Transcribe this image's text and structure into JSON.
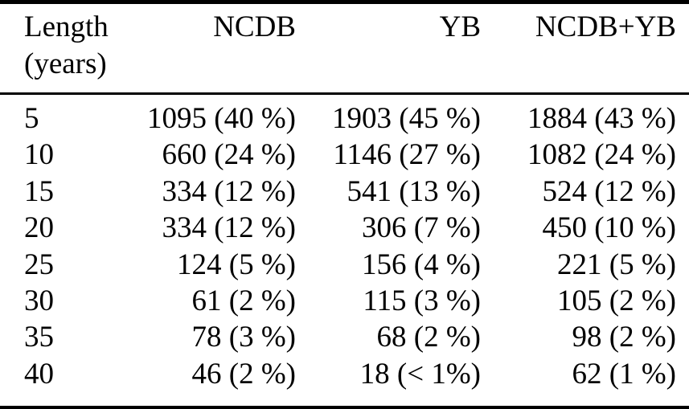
{
  "table": {
    "headers": {
      "length_line1": "Length",
      "length_line2": "(years)",
      "ncdb": "NCDB",
      "yb": "YB",
      "ncdb_yb": "NCDB+YB"
    },
    "rows": [
      {
        "length": "5",
        "ncdb": "1095 (40 %)",
        "yb": "1903 (45 %)",
        "ncdb_yb": "1884 (43 %)"
      },
      {
        "length": "10",
        "ncdb": "660 (24 %)",
        "yb": "1146 (27 %)",
        "ncdb_yb": "1082 (24 %)"
      },
      {
        "length": "15",
        "ncdb": "334 (12 %)",
        "yb": "541 (13 %)",
        "ncdb_yb": "524 (12 %)"
      },
      {
        "length": "20",
        "ncdb": "334 (12 %)",
        "yb": "306 (7 %)",
        "ncdb_yb": "450 (10 %)"
      },
      {
        "length": "25",
        "ncdb": "124 (5 %)",
        "yb": "156 (4 %)",
        "ncdb_yb": "221 (5 %)"
      },
      {
        "length": "30",
        "ncdb": "61 (2 %)",
        "yb": "115 (3 %)",
        "ncdb_yb": "105 (2 %)"
      },
      {
        "length": "35",
        "ncdb": "78 (3 %)",
        "yb": "68 (2 %)",
        "ncdb_yb": "98 (2 %)"
      },
      {
        "length": "40",
        "ncdb": "46 (2 %)",
        "yb": "18 (< 1%)",
        "ncdb_yb": "62 (1 %)"
      }
    ],
    "colors": {
      "text": "#000000",
      "background": "#ffffff",
      "rule": "#000000"
    }
  }
}
